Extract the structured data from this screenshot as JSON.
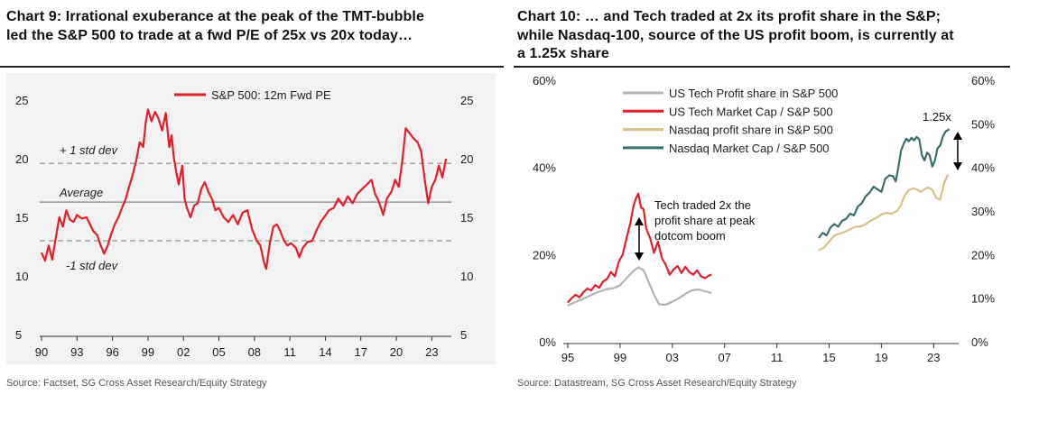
{
  "chart9": {
    "title_line1": "Chart 9: Irrational exuberance at the peak of the TMT-bubble",
    "title_line2": "led the S&P 500 to trade at a fwd P/E of 25x vs 20x today…",
    "source": "Source: Factset, SG Cross Asset Research/Equity Strategy",
    "legend": "S&P 500: 12m Fwd PE",
    "annotations": {
      "plus_std": "+ 1 std dev",
      "average": "Average",
      "minus_std": "-1 std dev"
    },
    "series_color": "#e0202a"
  },
  "chart10": {
    "title_line1": "Chart 10: … and Tech traded at 2x its profit share in the S&P;",
    "title_line2": "while Nasdaq-100, source of the US profit boom, is currently at",
    "title_line3": "a 1.25x share",
    "source": "Source: Datastream, SG Cross Asset Research/Equity Strategy",
    "annotations": {
      "tech_line1": "Tech traded 2x the",
      "tech_line2": "profit share at peak",
      "tech_line3": "dotcom boom",
      "ratio": "1.25x"
    }
  },
  "chart_data": [
    {
      "type": "line",
      "xlabel": "",
      "ylabel": "",
      "xlim": [
        1990,
        2024.5
      ],
      "ylim": [
        5,
        25
      ],
      "x_ticks": [
        "90",
        "93",
        "96",
        "99",
        "02",
        "05",
        "08",
        "11",
        "14",
        "17",
        "20",
        "23"
      ],
      "x_tick_values": [
        1990,
        1993,
        1996,
        1999,
        2002,
        2005,
        2008,
        2011,
        2014,
        2017,
        2020,
        2023
      ],
      "y_ticks": [
        5,
        10,
        15,
        20,
        25
      ],
      "legend_position": "top",
      "reference_lines": [
        {
          "name": "+ 1 std dev",
          "value": 19.6,
          "style": "dashed"
        },
        {
          "name": "Average",
          "value": 16.3,
          "style": "solid"
        },
        {
          "name": "-1 std dev",
          "value": 13.0,
          "style": "dashed"
        }
      ],
      "series": [
        {
          "name": "S&P 500: 12m Fwd PE",
          "color": "#e0202a",
          "x": [
            1990.0,
            1990.3,
            1990.6,
            1990.9,
            1991.2,
            1991.5,
            1991.8,
            1992.1,
            1992.4,
            1992.7,
            1993.0,
            1993.4,
            1993.8,
            1994.1,
            1994.4,
            1994.7,
            1995.0,
            1995.3,
            1995.6,
            1995.9,
            1996.2,
            1996.5,
            1996.8,
            1997.1,
            1997.4,
            1997.7,
            1998.0,
            1998.3,
            1998.6,
            1998.8,
            1999.0,
            1999.3,
            1999.6,
            1999.9,
            2000.2,
            2000.5,
            2000.8,
            2001.0,
            2001.2,
            2001.4,
            2001.6,
            2001.9,
            2002.1,
            2002.3,
            2002.6,
            2002.9,
            2003.2,
            2003.5,
            2003.8,
            2004.1,
            2004.4,
            2004.7,
            2005.0,
            2005.4,
            2005.8,
            2006.2,
            2006.6,
            2007.0,
            2007.4,
            2007.8,
            2008.2,
            2008.5,
            2008.8,
            2009.0,
            2009.3,
            2009.6,
            2009.9,
            2010.2,
            2010.5,
            2010.8,
            2011.1,
            2011.5,
            2011.8,
            2012.1,
            2012.5,
            2012.9,
            2013.2,
            2013.6,
            2013.9,
            2014.3,
            2014.7,
            2015.1,
            2015.5,
            2015.9,
            2016.3,
            2016.7,
            2017.1,
            2017.5,
            2017.9,
            2018.2,
            2018.5,
            2018.9,
            2019.2,
            2019.6,
            2019.9,
            2020.2,
            2020.5,
            2020.8,
            2021.1,
            2021.4,
            2021.8,
            2022.1,
            2022.4,
            2022.7,
            2023.0,
            2023.3,
            2023.6,
            2023.9,
            2024.2
          ],
          "values": [
            12.0,
            11.3,
            12.6,
            11.4,
            13.2,
            15.0,
            14.2,
            15.6,
            14.8,
            14.6,
            15.2,
            14.9,
            15.0,
            14.4,
            13.8,
            13.5,
            12.6,
            11.9,
            12.6,
            13.6,
            14.4,
            15.0,
            15.8,
            16.5,
            17.6,
            18.6,
            19.8,
            21.4,
            21.0,
            23.0,
            24.2,
            23.2,
            24.0,
            23.4,
            22.4,
            23.9,
            21.0,
            22.0,
            20.0,
            18.8,
            17.8,
            19.4,
            16.6,
            15.8,
            15.0,
            16.0,
            16.2,
            17.4,
            18.0,
            17.2,
            16.6,
            15.6,
            15.8,
            15.0,
            14.6,
            15.2,
            14.4,
            15.4,
            15.6,
            14.0,
            13.0,
            12.6,
            11.2,
            10.6,
            12.8,
            14.2,
            14.4,
            13.8,
            13.0,
            12.6,
            12.8,
            12.4,
            11.6,
            12.4,
            12.9,
            13.0,
            13.8,
            14.6,
            15.0,
            15.6,
            15.8,
            16.6,
            16.0,
            16.8,
            16.2,
            17.0,
            17.4,
            17.8,
            18.2,
            17.0,
            16.4,
            15.2,
            16.6,
            17.2,
            18.2,
            17.6,
            19.8,
            22.6,
            22.2,
            21.8,
            21.4,
            20.6,
            18.2,
            16.2,
            17.6,
            18.2,
            19.4,
            18.4,
            20.0
          ]
        }
      ]
    },
    {
      "type": "line",
      "xlabel": "",
      "ylabel": "",
      "xlim": [
        1995,
        2024.5
      ],
      "ylim_left": [
        0,
        60
      ],
      "ylim_right": [
        0,
        60
      ],
      "x_ticks": [
        "95",
        "99",
        "03",
        "07",
        "11",
        "15",
        "19",
        "23"
      ],
      "x_tick_values": [
        1995,
        1999,
        2003,
        2007,
        2011,
        2015,
        2019,
        2023
      ],
      "y_ticks_left": [
        "0%",
        "20%",
        "40%",
        "60%"
      ],
      "y_ticks_right": [
        "0%",
        "10%",
        "20%",
        "30%",
        "40%",
        "50%",
        "60%"
      ],
      "legend_position": "top-left",
      "series": [
        {
          "name": "US Tech Profit share in S&P 500",
          "color": "#b3b3b3",
          "x": [
            1995.0,
            1995.5,
            1996.0,
            1996.5,
            1997.0,
            1997.5,
            1998.0,
            1998.5,
            1999.0,
            1999.5,
            2000.0,
            2000.4,
            2000.8,
            2001.2,
            2001.6,
            2002.0,
            2002.5,
            2003.0,
            2003.5,
            2004.0,
            2004.5,
            2005.0,
            2005.5,
            2006.0
          ],
          "values": [
            8.5,
            9.2,
            9.8,
            10.5,
            11.2,
            11.8,
            12.3,
            12.5,
            13.2,
            14.8,
            16.4,
            17.3,
            16.6,
            13.8,
            11.0,
            8.8,
            8.7,
            9.4,
            10.2,
            11.2,
            12.0,
            12.2,
            11.8,
            11.4
          ]
        },
        {
          "name": "US Tech Market Cap / S&P 500",
          "color": "#e0202a",
          "x": [
            1995.0,
            1995.3,
            1995.6,
            1995.9,
            1996.2,
            1996.5,
            1996.8,
            1997.1,
            1997.4,
            1997.7,
            1998.0,
            1998.3,
            1998.6,
            1998.9,
            1999.2,
            1999.5,
            1999.8,
            2000.0,
            2000.2,
            2000.4,
            2000.6,
            2000.8,
            2001.0,
            2001.3,
            2001.6,
            2001.9,
            2002.2,
            2002.5,
            2002.8,
            2003.1,
            2003.4,
            2003.7,
            2004.0,
            2004.3,
            2004.6,
            2004.9,
            2005.2,
            2005.5,
            2005.8,
            2006.0
          ],
          "values": [
            9.2,
            10.2,
            11.0,
            10.4,
            11.6,
            12.4,
            12.0,
            13.2,
            12.6,
            14.0,
            14.6,
            16.2,
            15.2,
            18.6,
            20.2,
            24.0,
            27.6,
            31.0,
            33.0,
            34.2,
            31.0,
            30.6,
            26.2,
            24.0,
            20.6,
            23.2,
            19.4,
            17.8,
            15.6,
            16.8,
            17.6,
            16.0,
            17.4,
            16.2,
            15.6,
            16.6,
            15.2,
            14.8,
            15.4,
            15.6
          ]
        },
        {
          "name": "Nasdaq profit share in S&P 500",
          "color": "#d6c18e",
          "x": [
            2014.2,
            2014.6,
            2015.0,
            2015.4,
            2015.8,
            2016.2,
            2016.6,
            2017.0,
            2017.4,
            2017.8,
            2018.2,
            2018.6,
            2019.0,
            2019.4,
            2019.8,
            2020.2,
            2020.5,
            2020.8,
            2021.1,
            2021.4,
            2021.7,
            2022.0,
            2022.3,
            2022.6,
            2022.9,
            2023.2,
            2023.5,
            2023.8,
            2024.1
          ],
          "values": [
            21.2,
            21.8,
            23.2,
            24.6,
            25.0,
            25.4,
            26.0,
            26.6,
            26.6,
            27.2,
            28.0,
            28.6,
            29.4,
            29.8,
            29.6,
            30.2,
            31.6,
            33.8,
            35.0,
            35.4,
            35.2,
            34.6,
            35.2,
            35.6,
            35.0,
            33.2,
            32.8,
            36.6,
            38.6
          ]
        },
        {
          "name": "Nasdaq Market Cap / S&P 500",
          "color": "#3d6e6e",
          "x": [
            2014.2,
            2014.5,
            2014.8,
            2015.1,
            2015.4,
            2015.7,
            2016.0,
            2016.3,
            2016.6,
            2016.9,
            2017.2,
            2017.5,
            2017.8,
            2018.1,
            2018.4,
            2018.7,
            2019.0,
            2019.3,
            2019.6,
            2019.9,
            2020.1,
            2020.3,
            2020.5,
            2020.7,
            2020.9,
            2021.1,
            2021.3,
            2021.5,
            2021.7,
            2021.9,
            2022.1,
            2022.3,
            2022.5,
            2022.7,
            2022.9,
            2023.1,
            2023.3,
            2023.5,
            2023.7,
            2023.9,
            2024.2
          ],
          "values": [
            24.0,
            25.2,
            24.6,
            26.4,
            27.2,
            26.6,
            28.0,
            28.4,
            29.6,
            29.2,
            31.2,
            32.0,
            33.6,
            34.4,
            35.8,
            35.2,
            34.6,
            37.6,
            38.4,
            38.2,
            37.0,
            40.2,
            44.0,
            45.6,
            46.8,
            46.2,
            47.0,
            46.4,
            47.2,
            46.6,
            43.0,
            41.8,
            43.6,
            43.0,
            40.4,
            41.8,
            44.6,
            45.2,
            47.2,
            48.4,
            49.0
          ]
        }
      ]
    }
  ]
}
